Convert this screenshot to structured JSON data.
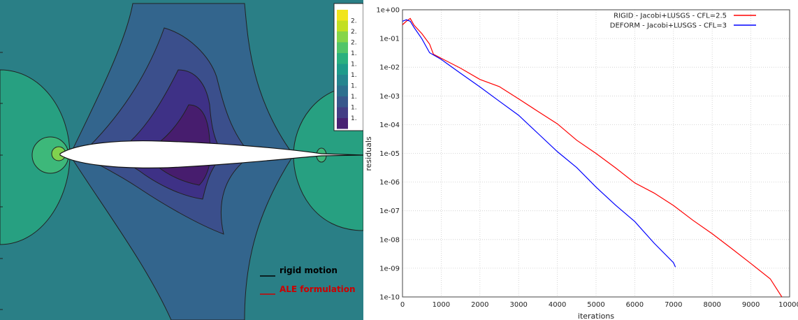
{
  "contour_plot": {
    "legend_values": [
      "2.",
      "2.",
      "2.",
      "1.",
      "1.",
      "1.",
      "1.",
      "1.",
      "1.",
      "1."
    ],
    "legend_colors": [
      "#f1e51d",
      "#c2df23",
      "#86d549",
      "#52c569",
      "#2ab07f",
      "#1e9b8a",
      "#25858e",
      "#2d708e",
      "#38588c",
      "#433e85",
      "#482173"
    ],
    "line_legend": [
      {
        "label": "rigid motion",
        "color": "#000000"
      },
      {
        "label": "ALE formulation",
        "color": "#cc0000"
      }
    ]
  },
  "chart_data": {
    "type": "line",
    "title": "",
    "xlabel": "iterations",
    "ylabel": "residuals",
    "x_ticks": [
      "0",
      "1000",
      "2000",
      "3000",
      "4000",
      "5000",
      "6000",
      "7000",
      "8000",
      "9000",
      "10000"
    ],
    "y_ticks": [
      "1e+00",
      "1e-01",
      "1e-02",
      "1e-03",
      "1e-04",
      "1e-05",
      "1e-06",
      "1e-07",
      "1e-08",
      "1e-09",
      "1e-10"
    ],
    "xlim": [
      0,
      10000
    ],
    "ylim_log10": [
      -10,
      0
    ],
    "y_scale": "log",
    "grid": true,
    "legend_position": "top-right",
    "series": [
      {
        "name": "RIGID - Jacobi+LUSGS - CFL=2.5",
        "color": "#ff0000",
        "x": [
          0,
          100,
          200,
          300,
          500,
          700,
          800,
          1000,
          1500,
          2000,
          2500,
          3000,
          3500,
          4000,
          4500,
          5000,
          5500,
          6000,
          6500,
          7000,
          7500,
          8000,
          8500,
          9000,
          9500,
          9800
        ],
        "y": [
          0.3,
          0.4,
          0.5,
          0.3,
          0.15,
          0.06,
          0.03,
          0.02,
          0.009,
          0.004,
          0.002,
          0.0008,
          0.0003,
          0.0001,
          3e-05,
          1e-05,
          3e-06,
          1e-06,
          4e-07,
          1.5e-07,
          5e-08,
          1.5e-08,
          5e-09,
          1.5e-09,
          4e-10,
          1e-10
        ]
      },
      {
        "name": "DEFORM - Jacobi+LUSGS - CFL=3",
        "color": "#0000ff",
        "x": [
          0,
          100,
          200,
          300,
          500,
          700,
          1000,
          1500,
          2000,
          2500,
          3000,
          3500,
          4000,
          4500,
          5000,
          5500,
          6000,
          6500,
          7000,
          7050
        ],
        "y": [
          0.4,
          0.45,
          0.4,
          0.25,
          0.1,
          0.03,
          0.02,
          0.006,
          0.002,
          0.0007,
          0.0002,
          5e-05,
          1.2e-05,
          3e-06,
          7e-07,
          1.6e-07,
          4e-08,
          8e-09,
          1.5e-09,
          1.1e-09
        ]
      }
    ]
  }
}
